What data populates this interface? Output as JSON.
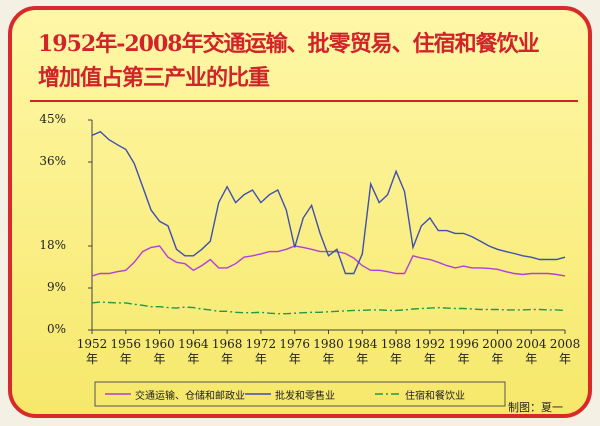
{
  "chart_data": {
    "type": "line",
    "title": [
      "1952年-2008年交通运输、批零贸易、住宿和餐饮业",
      "增加值占第三产业的比重"
    ],
    "note": "制图：夏一",
    "x": [
      1952,
      1953,
      1954,
      1955,
      1956,
      1957,
      1958,
      1959,
      1960,
      1961,
      1962,
      1963,
      1964,
      1965,
      1966,
      1967,
      1968,
      1969,
      1970,
      1971,
      1972,
      1973,
      1974,
      1975,
      1976,
      1977,
      1978,
      1979,
      1980,
      1981,
      1982,
      1983,
      1984,
      1985,
      1986,
      1987,
      1988,
      1989,
      1990,
      1991,
      1992,
      1993,
      1994,
      1995,
      1996,
      1997,
      1998,
      1999,
      2000,
      2001,
      2002,
      2003,
      2004,
      2005,
      2006,
      2007,
      2008
    ],
    "xlim": [
      1952,
      2008
    ],
    "xticks": [
      {
        "value": 1952,
        "label": "1952年"
      },
      {
        "value": 1956,
        "label": "1956年"
      },
      {
        "value": 1960,
        "label": "1960年"
      },
      {
        "value": 1964,
        "label": "1964年"
      },
      {
        "value": 1968,
        "label": "1968年"
      },
      {
        "value": 1972,
        "label": "1972年"
      },
      {
        "value": 1976,
        "label": "1976年"
      },
      {
        "value": 1980,
        "label": "1980年"
      },
      {
        "value": 1984,
        "label": "1984年"
      },
      {
        "value": 1988,
        "label": "1988年"
      },
      {
        "value": 1992,
        "label": "1992年"
      },
      {
        "value": 1996,
        "label": "1996年"
      },
      {
        "value": 2000,
        "label": "2000年"
      },
      {
        "value": 2004,
        "label": "2004年"
      },
      {
        "value": 2008,
        "label": "2008年"
      }
    ],
    "ylim": [
      0,
      45
    ],
    "yticks": [
      {
        "value": 0,
        "label": "0%"
      },
      {
        "value": 9,
        "label": "9%"
      },
      {
        "value": 18,
        "label": "18%"
      },
      {
        "value": 36,
        "label": "36%"
      },
      {
        "value": 45,
        "label": "45%"
      }
    ],
    "series": [
      {
        "name": "交通运输、仓储和邮政业",
        "color": "#b23fd6",
        "dash": "solid",
        "values": [
          11.6,
          12.1,
          12.1,
          12.5,
          12.8,
          14.5,
          16.8,
          17.7,
          18,
          15.6,
          14.5,
          14.2,
          12.8,
          13.8,
          15.1,
          13.3,
          13.3,
          14.2,
          15.6,
          15.9,
          16.3,
          16.8,
          16.8,
          17.3,
          18,
          17.7,
          17.3,
          16.8,
          16.8,
          16.8,
          16.4,
          15.4,
          13.8,
          12.8,
          12.8,
          12.5,
          12.1,
          12.1,
          15.9,
          15.4,
          15.1,
          14.5,
          13.8,
          13.3,
          13.7,
          13.3,
          13.3,
          13.2,
          13,
          12.5,
          12.1,
          11.9,
          12.1,
          12.1,
          12.1,
          11.9,
          11.6
        ]
      },
      {
        "name": "批发和零售业",
        "color": "#3f4fb0",
        "dash": "solid",
        "values": [
          41.7,
          42.5,
          40.8,
          39.7,
          38.7,
          35.7,
          30.7,
          25.7,
          23.3,
          22.3,
          17.3,
          15.9,
          15.9,
          17.3,
          19,
          27.3,
          30.7,
          27.3,
          29,
          30,
          27.3,
          29,
          30,
          25.7,
          17.7,
          24,
          26.7,
          20.7,
          15.9,
          17.3,
          12.1,
          12.1,
          16.3,
          31.3,
          27.3,
          29,
          34,
          29.7,
          17.7,
          22.3,
          24,
          21.3,
          21.3,
          20.7,
          20.7,
          20,
          19,
          18,
          17.3,
          16.8,
          16.4,
          15.9,
          15.6,
          15.1,
          15.1,
          15.1,
          15.6
        ]
      },
      {
        "name": "住宿和餐饮业",
        "color": "#1f9a4a",
        "dash": "dashdot",
        "values": [
          5.8,
          6.0,
          5.9,
          5.8,
          5.8,
          5.5,
          5.3,
          5.0,
          5.0,
          4.8,
          4.7,
          4.9,
          4.8,
          4.5,
          4.3,
          4.0,
          4.0,
          3.8,
          3.7,
          3.7,
          3.8,
          3.6,
          3.5,
          3.5,
          3.6,
          3.7,
          3.8,
          3.8,
          3.9,
          4.0,
          4.1,
          4.2,
          4.2,
          4.3,
          4.3,
          4.2,
          4.2,
          4.3,
          4.5,
          4.6,
          4.7,
          4.8,
          4.7,
          4.6,
          4.6,
          4.5,
          4.4,
          4.4,
          4.4,
          4.3,
          4.3,
          4.3,
          4.4,
          4.4,
          4.3,
          4.3,
          4.2
        ]
      }
    ],
    "legend": "bottom"
  }
}
